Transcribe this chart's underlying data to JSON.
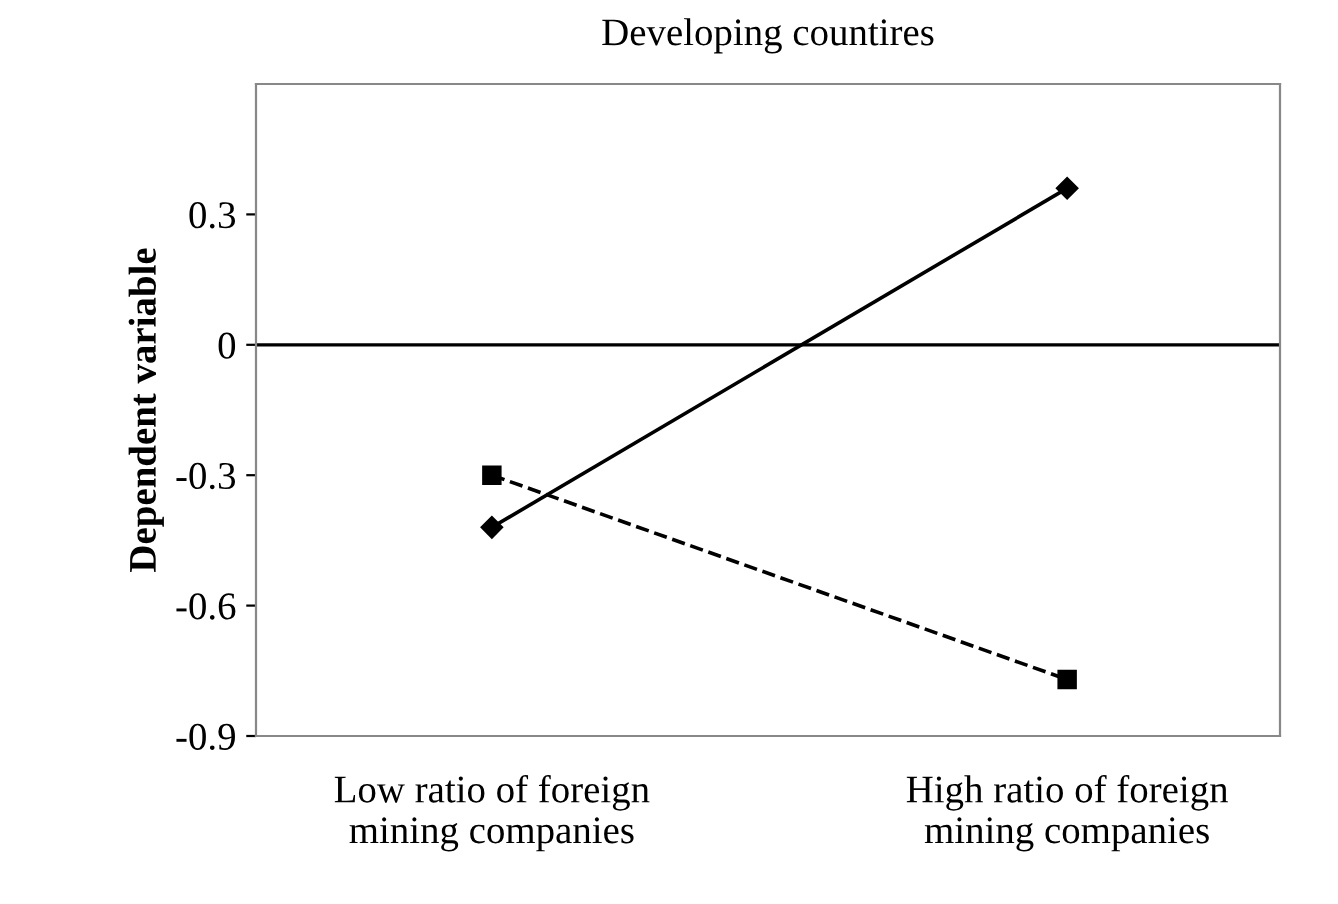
{
  "chart_data": {
    "type": "line",
    "title": "Developing countires",
    "ylabel": "Dependent variable",
    "categories": [
      "Low ratio of foreign\nmining companies",
      "High ratio of foreign\nmining companies"
    ],
    "series": [
      {
        "color": "#000000",
        "values": [
          -0.42,
          0.36
        ],
        "marker": "diamond",
        "line_style": "solid"
      },
      {
        "color": "#000000",
        "values": [
          -0.3,
          -0.77
        ],
        "marker": "square",
        "line_style": "dashed"
      }
    ],
    "ylim": [
      -0.9,
      0.6
    ],
    "yticks": [
      -0.9,
      -0.6,
      -0.3,
      0,
      0.3
    ],
    "ref_lines": [
      {
        "axis": "y",
        "value": 0,
        "color": "#000000"
      }
    ],
    "grid": false,
    "legend": false
  }
}
